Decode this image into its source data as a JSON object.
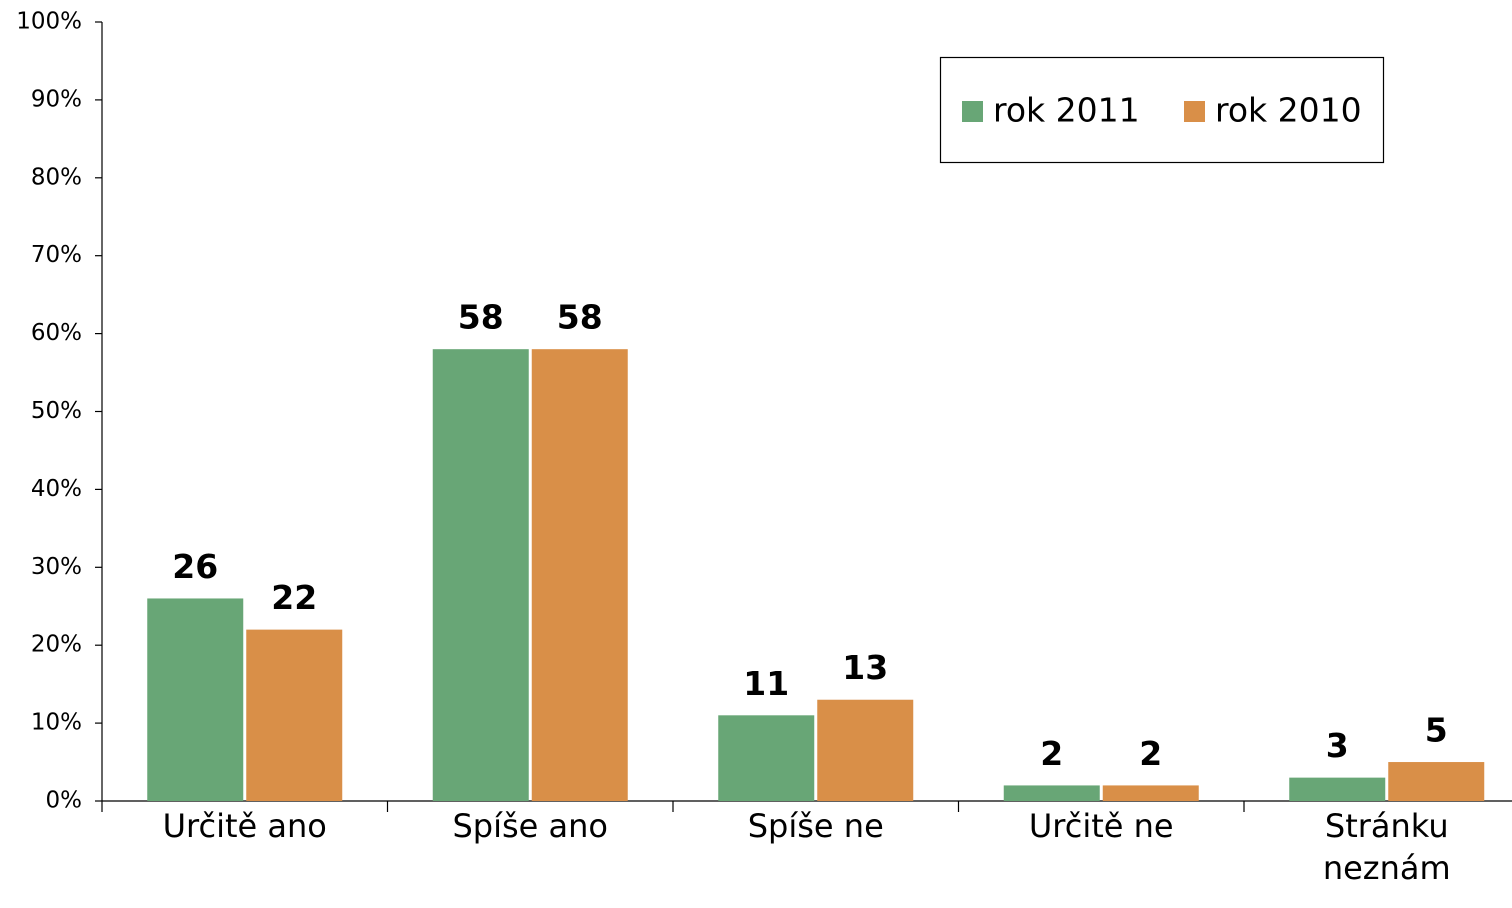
{
  "chart_data": {
    "type": "bar",
    "categories": [
      "Určitě ano",
      "Spíše ano",
      "Spíše ne",
      "Určitě ne",
      "Stránku neznám"
    ],
    "series": [
      {
        "name": "rok 2011",
        "color": "#68a676",
        "values": [
          26,
          58,
          11,
          2,
          3
        ]
      },
      {
        "name": "rok 2010",
        "color": "#d98f48",
        "values": [
          22,
          58,
          13,
          2,
          5
        ]
      }
    ],
    "ylim": [
      0,
      100
    ],
    "yticks": [
      {
        "value": 0,
        "label": "0%"
      },
      {
        "value": 10,
        "label": "10%"
      },
      {
        "value": 20,
        "label": "20%"
      },
      {
        "value": 30,
        "label": "30%"
      },
      {
        "value": 40,
        "label": "40%"
      },
      {
        "value": 50,
        "label": "50%"
      },
      {
        "value": 60,
        "label": "60%"
      },
      {
        "value": 70,
        "label": "70%"
      },
      {
        "value": 80,
        "label": "80%"
      },
      {
        "value": 90,
        "label": "90%"
      },
      {
        "value": 100,
        "label": "100%"
      }
    ],
    "grid": false,
    "legend": "top-right"
  }
}
